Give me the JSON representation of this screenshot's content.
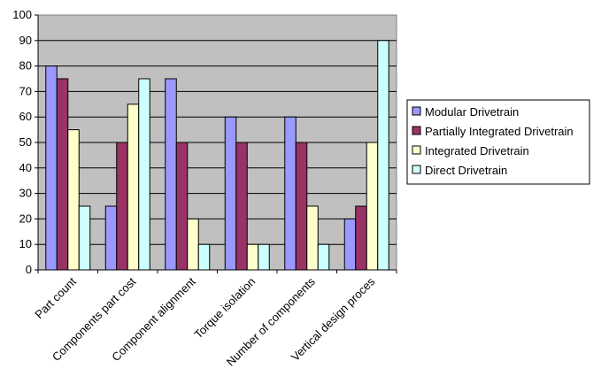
{
  "chart_data": {
    "type": "bar",
    "categories": [
      "Part count",
      "Components part cost",
      "Component alignment",
      "Torque isolation",
      "Number of components",
      "Vertical design proces"
    ],
    "series": [
      {
        "name": "Modular Drivetrain",
        "color": "#9999ff",
        "values": [
          80,
          25,
          75,
          60,
          60,
          20
        ]
      },
      {
        "name": "Partially Integrated Drivetrain",
        "color": "#993366",
        "values": [
          75,
          50,
          50,
          50,
          50,
          25
        ]
      },
      {
        "name": "Integrated Drivetrain",
        "color": "#ffffcc",
        "values": [
          55,
          65,
          20,
          10,
          25,
          50
        ]
      },
      {
        "name": "Direct Drivetrain",
        "color": "#ccffff",
        "values": [
          25,
          75,
          10,
          10,
          10,
          90
        ]
      }
    ],
    "ylim": [
      0,
      100
    ],
    "yticks": [
      "0",
      "10",
      "20",
      "30",
      "40",
      "50",
      "60",
      "70",
      "80",
      "90",
      "100"
    ],
    "grid": true,
    "plot_background": "#c0c0c0",
    "legend_position": "right",
    "title": "",
    "xlabel": "",
    "ylabel": ""
  }
}
